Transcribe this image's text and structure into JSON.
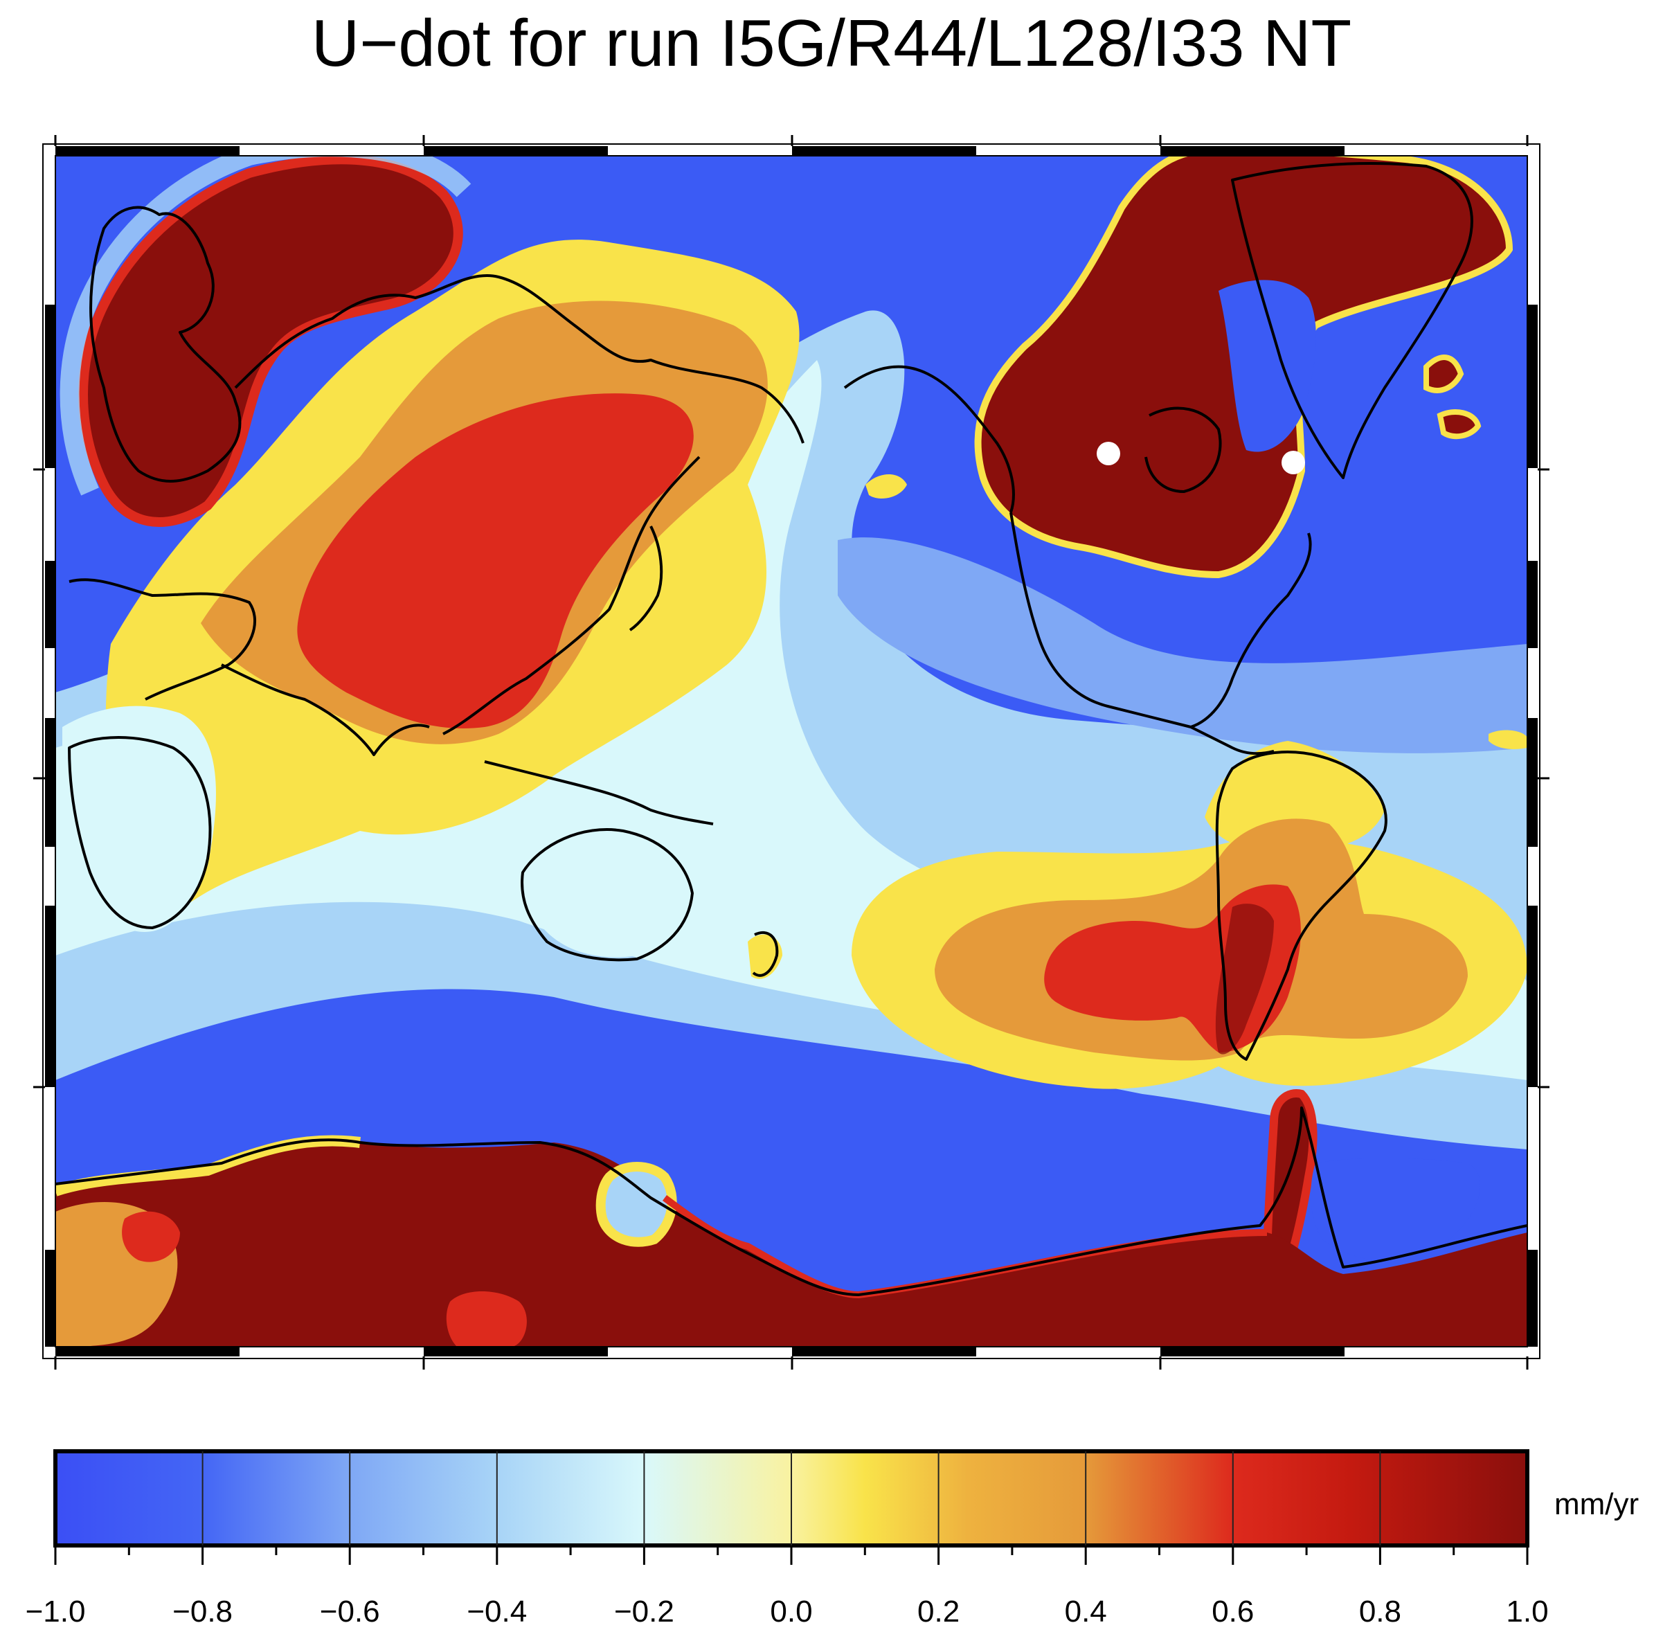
{
  "title": "U−dot for run I5G/R44/L128/I33 NT",
  "colorbar": {
    "unit": "mm/yr",
    "min": -1.0,
    "max": 1.0,
    "tick_labels": [
      "−1.0",
      "−0.8",
      "−0.6",
      "−0.4",
      "−0.2",
      "0.0",
      "0.2",
      "0.4",
      "0.6",
      "0.8",
      "1.0"
    ],
    "colors": {
      "deep_blue": "#3b5bf5",
      "mid_blue": "#7fa8f5",
      "light_blue": "#a8d4f7",
      "pale_cyan": "#d9f8fb",
      "yellow": "#f9e34a",
      "orange": "#e59a3a",
      "red": "#dd2a1d",
      "dark_red": "#8a0f0c"
    }
  },
  "map": {
    "frame_color": "#000000",
    "coastline_color": "#000000",
    "markers": [
      {
        "name": "site-marker-1",
        "color": "#ffffff"
      },
      {
        "name": "site-marker-2",
        "color": "#ffffff"
      }
    ]
  }
}
